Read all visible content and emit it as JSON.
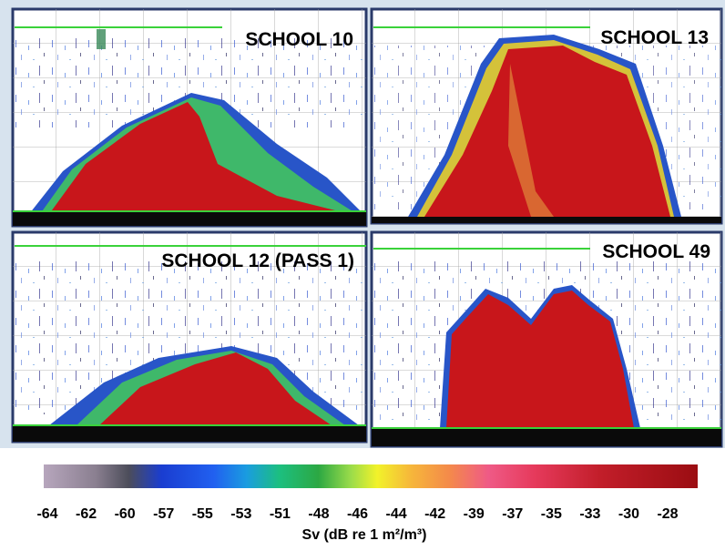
{
  "panels": [
    {
      "label": "SCHOOL 10"
    },
    {
      "label": "SCHOOL 13"
    },
    {
      "label": "SCHOOL 12 (PASS 1)"
    },
    {
      "label": "SCHOOL 49"
    }
  ],
  "colorbar": {
    "ticks": [
      -64,
      -62,
      -60,
      -57,
      -55,
      -53,
      -51,
      -48,
      -46,
      -44,
      -42,
      -39,
      -37,
      -35,
      -33,
      -30,
      -28
    ],
    "label": "Sv (dB re 1 m²/m³)"
  }
}
